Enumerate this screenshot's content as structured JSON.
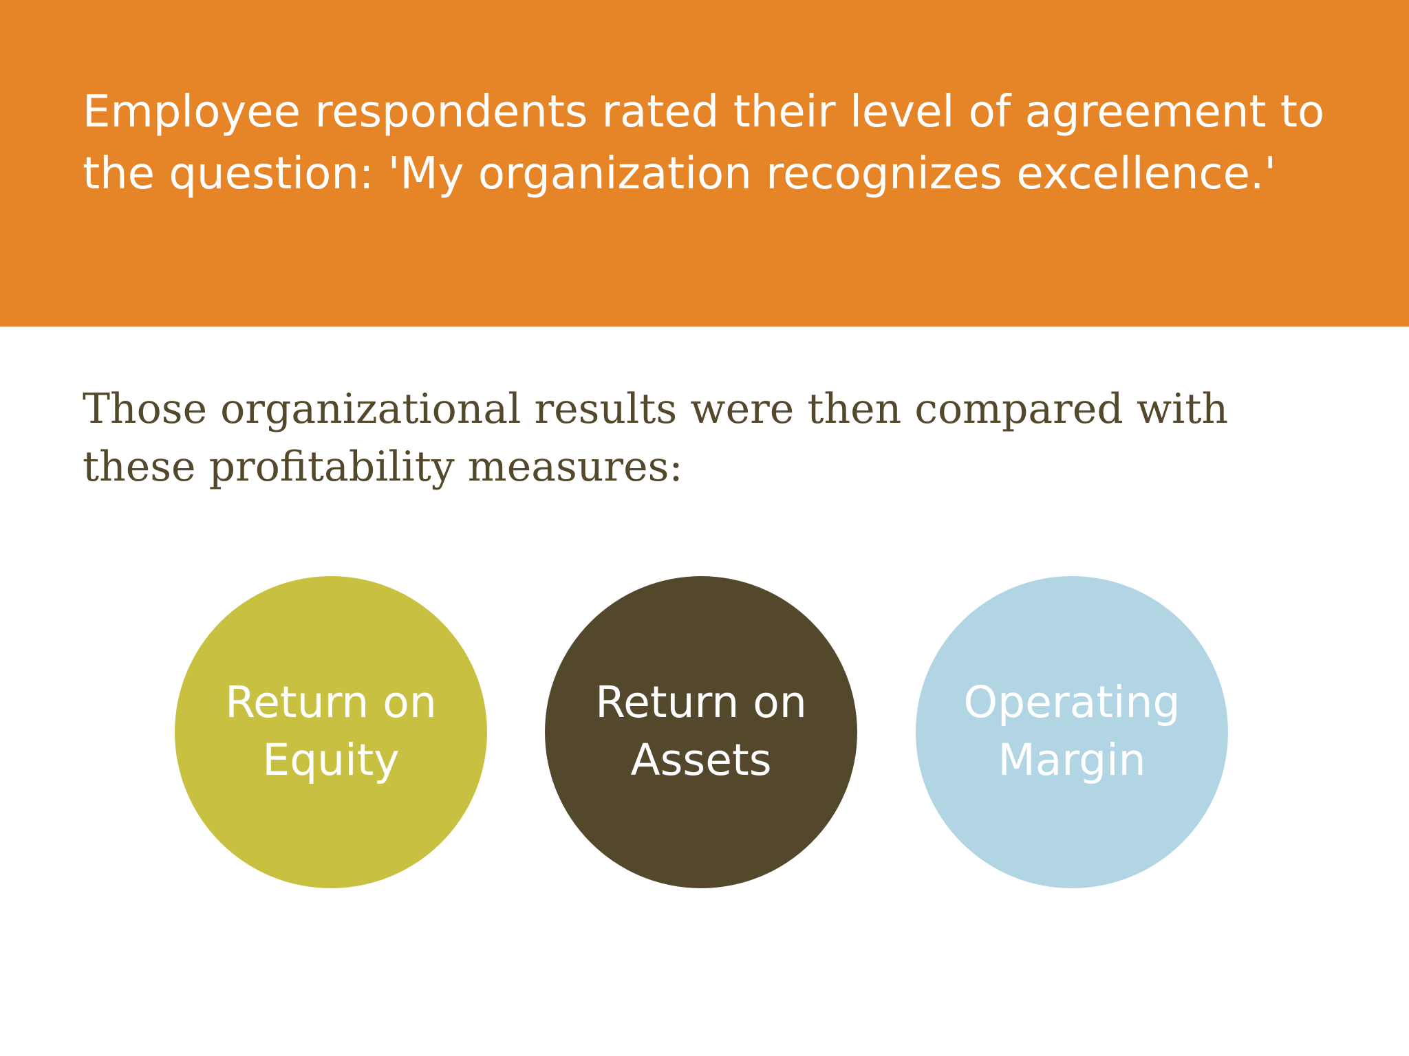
{
  "header": {
    "text": "Employee respondents rated their level of agreement to the question: 'My organization recognizes excellence.'",
    "background_color": "#E68428"
  },
  "subtitle": {
    "text": "Those organizational results were then compared with these profitability measures:",
    "color": "#54482C"
  },
  "measures": [
    {
      "label": "Return on\nEquity",
      "color": "#C8C040"
    },
    {
      "label": "Return on\nAssets",
      "color": "#54482C"
    },
    {
      "label": "Operating\nMargin",
      "color": "#B1D5E3"
    }
  ]
}
